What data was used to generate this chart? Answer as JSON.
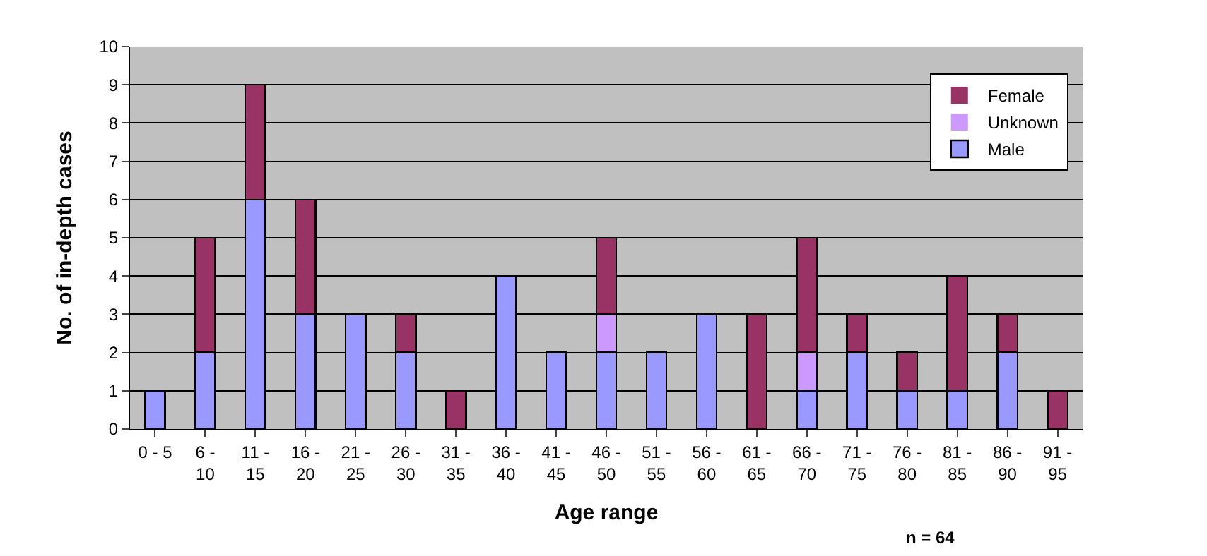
{
  "chart_data": {
    "type": "bar",
    "stacked": true,
    "xlabel": "Age range",
    "ylabel": "No. of in-depth cases",
    "categories": [
      "0 - 5",
      "6 - 10",
      "11 - 15",
      "16 - 20",
      "21 - 25",
      "26 - 30",
      "31 - 35",
      "36 - 40",
      "41 - 45",
      "46 - 50",
      "51 - 55",
      "56 - 60",
      "61 - 65",
      "66 - 70",
      "71 - 75",
      "76 - 80",
      "81 - 85",
      "86 - 90",
      "91 - 95"
    ],
    "series": [
      {
        "name": "Male",
        "color": "#9999ff",
        "values": [
          1,
          2,
          6,
          3,
          3,
          2,
          0,
          4,
          2,
          2,
          2,
          3,
          0,
          1,
          2,
          1,
          1,
          2,
          0
        ]
      },
      {
        "name": "Unknown",
        "color": "#cc99ff",
        "values": [
          0,
          0,
          0,
          0,
          0,
          0,
          0,
          0,
          0,
          1,
          0,
          0,
          0,
          1,
          0,
          0,
          0,
          0,
          0
        ]
      },
      {
        "name": "Female",
        "color": "#993366",
        "values": [
          0,
          3,
          3,
          3,
          0,
          1,
          1,
          0,
          0,
          2,
          0,
          0,
          3,
          3,
          1,
          1,
          3,
          1,
          1
        ]
      }
    ],
    "ylim": [
      0,
      10
    ],
    "yticks": [
      0,
      1,
      2,
      3,
      4,
      5,
      6,
      7,
      8,
      9,
      10
    ],
    "grid": "y",
    "legend": "top right",
    "annotations": [
      "n = 64"
    ]
  }
}
